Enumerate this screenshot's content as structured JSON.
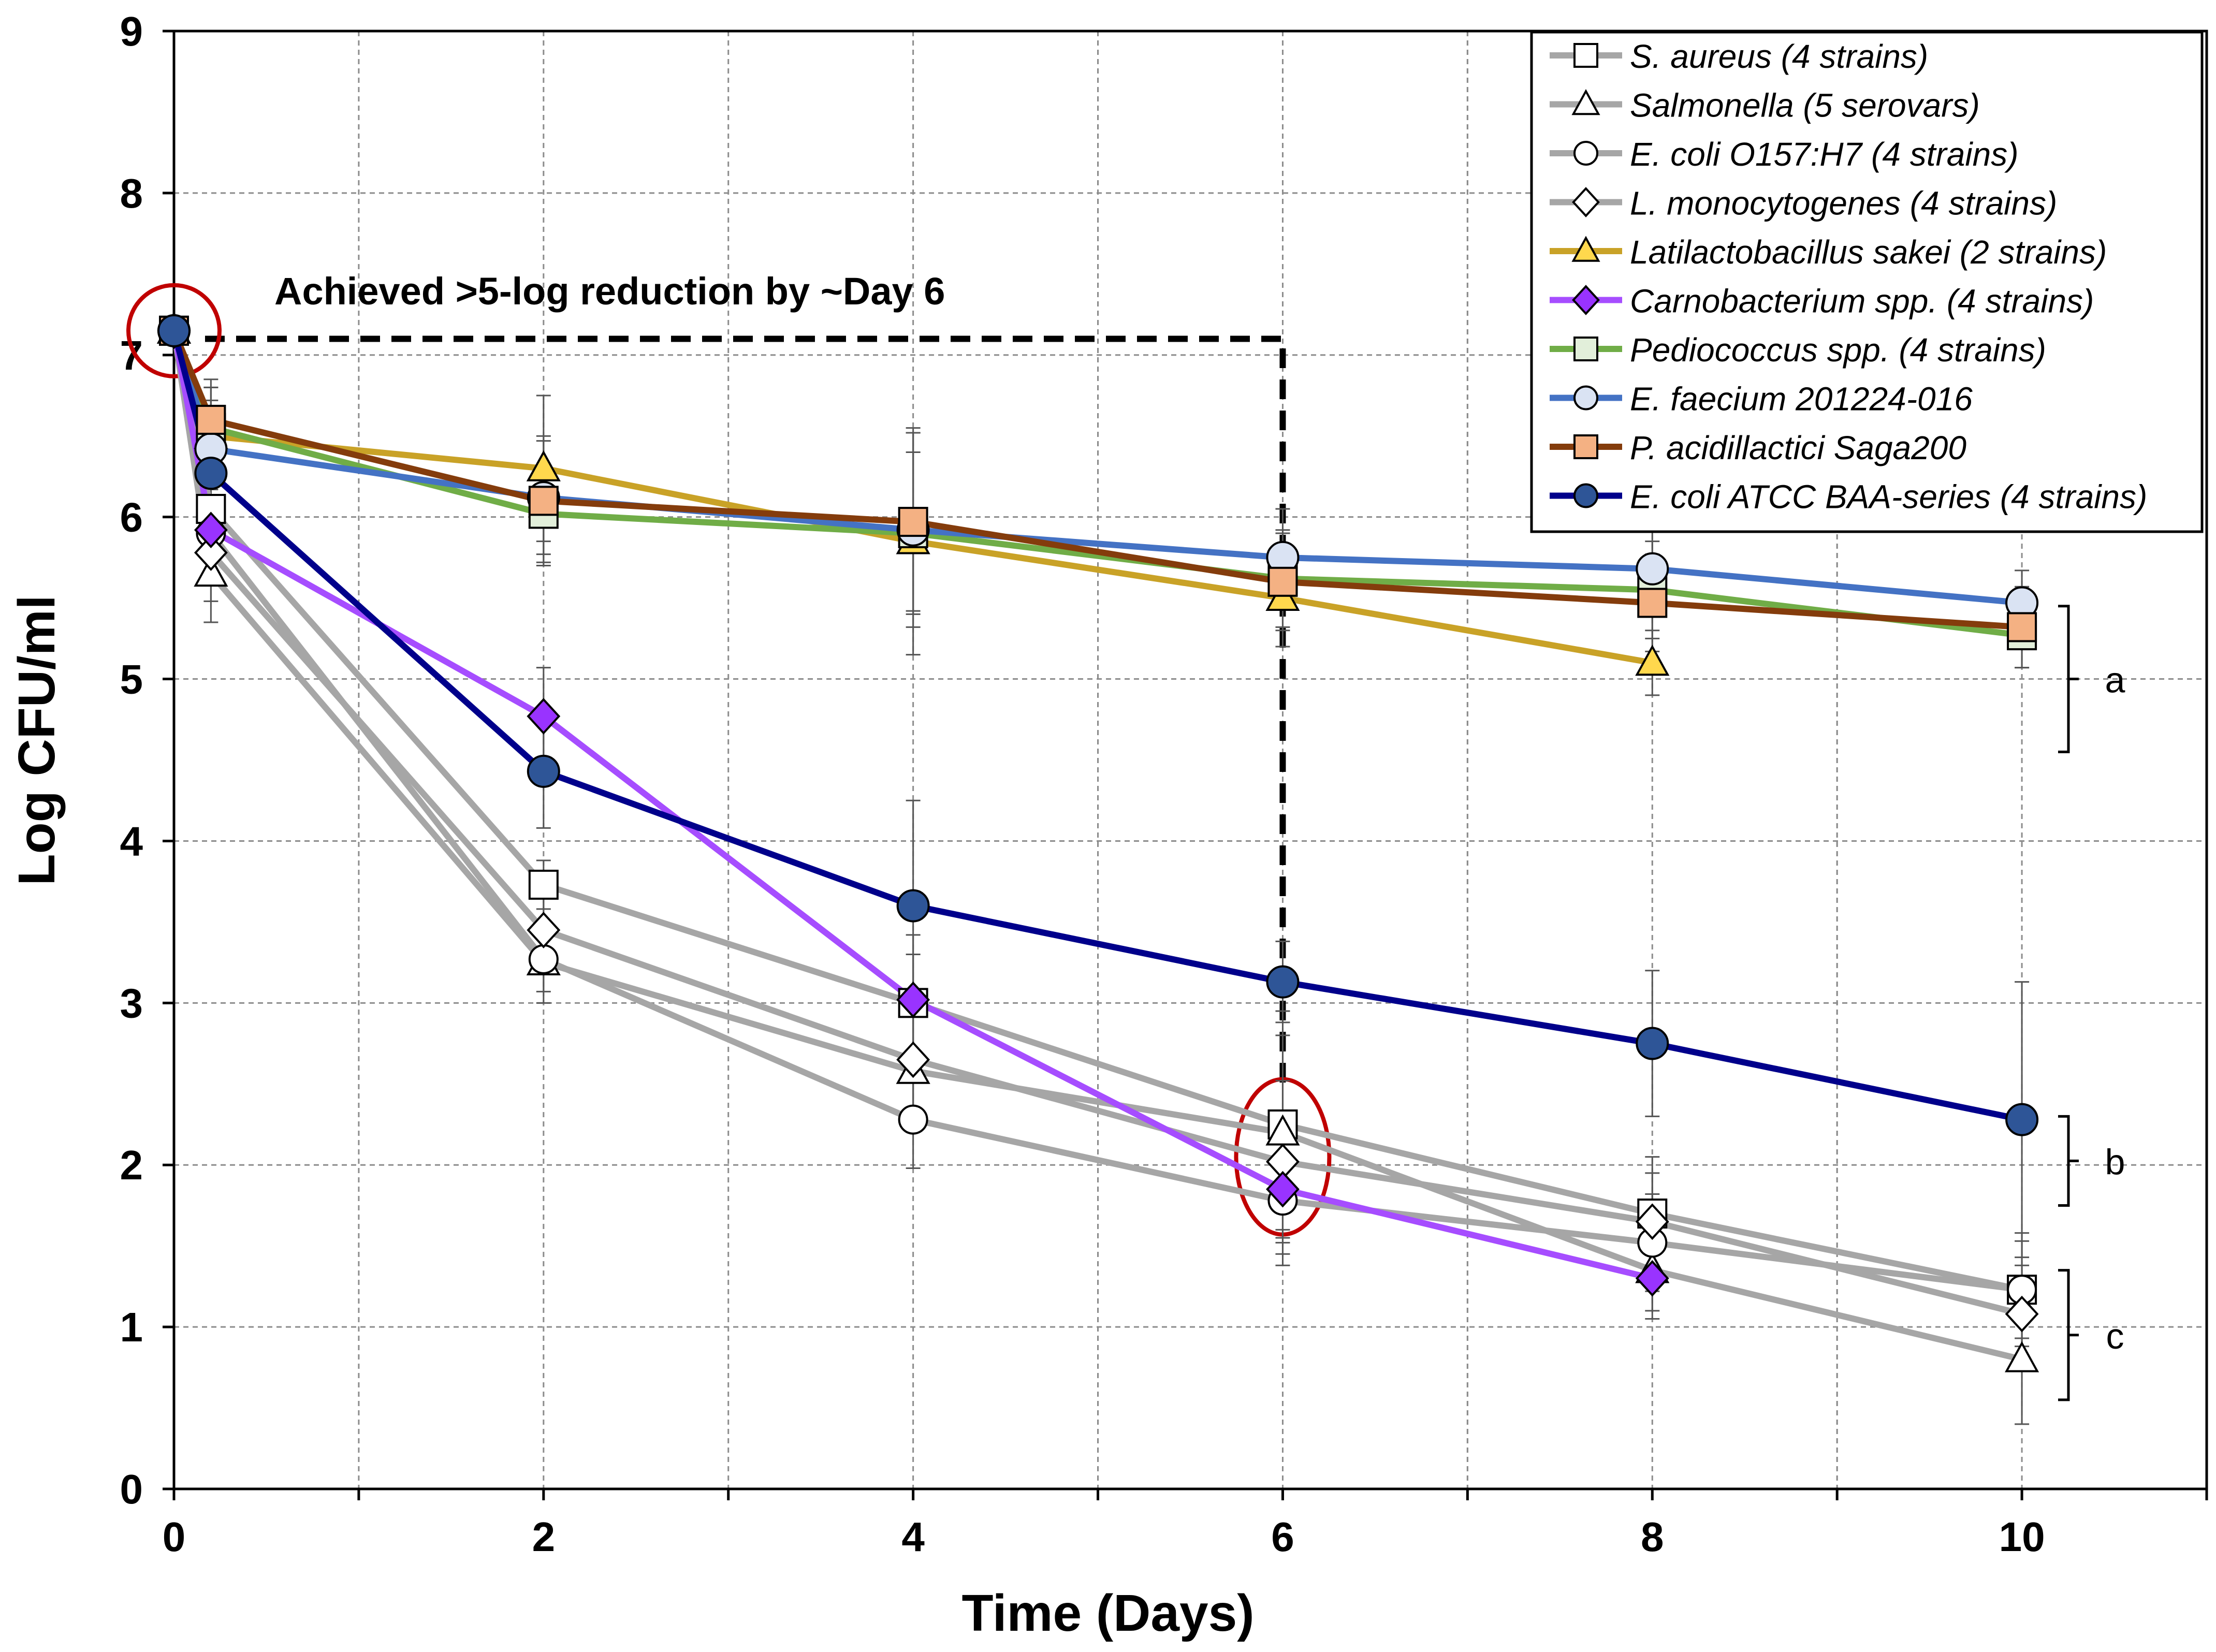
{
  "chart_data": {
    "type": "line",
    "title": "",
    "xlabel": "Time (Days)",
    "ylabel": "Log CFU/ml",
    "xlim": [
      0,
      11
    ],
    "ylim": [
      0,
      9
    ],
    "xticks": [
      0,
      2,
      4,
      6,
      8,
      10
    ],
    "yticks": [
      0,
      1,
      2,
      3,
      4,
      5,
      6,
      7,
      8,
      9
    ],
    "xtick_labels": [
      "0",
      "2",
      "4",
      "6",
      "8",
      "10"
    ],
    "ytick_labels": [
      "0",
      "1",
      "2",
      "3",
      "4",
      "5",
      "6",
      "7",
      "8",
      "9"
    ],
    "grid": true,
    "legend_position": "top-right",
    "series": [
      {
        "name": "S. aureus (4 strains)",
        "color": "#a6a6a6",
        "marker": "square",
        "marker_fill": "#ffffff",
        "marker_edge": "#000000",
        "x": [
          0,
          0.2,
          2,
          4,
          6,
          8,
          10
        ],
        "y": [
          7.15,
          6.05,
          3.73,
          3.0,
          2.25,
          1.7,
          1.23
        ],
        "err": [
          0.05,
          0.3,
          0.15,
          0.3,
          0.7,
          0.35,
          0.35
        ]
      },
      {
        "name": "Salmonella (5 serovars)",
        "color": "#a6a6a6",
        "marker": "triangle",
        "marker_fill": "#ffffff",
        "marker_edge": "#000000",
        "x": [
          0,
          0.2,
          2,
          4,
          6,
          8,
          10
        ],
        "y": [
          7.15,
          5.65,
          3.25,
          2.58,
          2.2,
          1.35,
          0.8
        ],
        "err": [
          0.05,
          0.3,
          0.25,
          0.35,
          0.6,
          0.3,
          0.4
        ]
      },
      {
        "name": "E. coli O157:H7 (4 strains)",
        "color": "#a6a6a6",
        "marker": "circle",
        "marker_fill": "#ffffff",
        "marker_edge": "#000000",
        "x": [
          0,
          0.2,
          2,
          4,
          6,
          8,
          10
        ],
        "y": [
          7.15,
          5.9,
          3.27,
          2.28,
          1.78,
          1.52,
          1.23
        ],
        "err": [
          0.05,
          0.3,
          0.2,
          0.3,
          0.4,
          0.3,
          0.3
        ]
      },
      {
        "name": "L. monocytogenes (4 strains)",
        "color": "#a6a6a6",
        "marker": "diamond",
        "marker_fill": "#ffffff",
        "marker_edge": "#000000",
        "x": [
          0,
          0.2,
          2,
          4,
          6,
          8,
          10
        ],
        "y": [
          7.15,
          5.78,
          3.45,
          2.65,
          2.02,
          1.65,
          1.08
        ],
        "err": [
          0.05,
          0.3,
          0.2,
          0.3,
          0.5,
          0.3,
          0.3
        ]
      },
      {
        "name": "Latilactobacillus sakei (2 strains)",
        "color": "#c9a227",
        "marker": "triangle",
        "marker_fill": "#ffd84d",
        "marker_edge": "#000000",
        "x": [
          0,
          0.2,
          2,
          4,
          6,
          8
        ],
        "y": [
          7.15,
          6.5,
          6.3,
          5.85,
          5.5,
          5.1
        ],
        "err": [
          0.05,
          0.3,
          0.45,
          0.7,
          0.3,
          0.2
        ]
      },
      {
        "name": "Carnobacterium spp. (4 strains)",
        "color": "#a64dff",
        "marker": "diamond",
        "marker_fill": "#9933ff",
        "marker_edge": "#000000",
        "x": [
          0,
          0.2,
          2,
          4,
          6,
          8
        ],
        "y": [
          7.15,
          5.92,
          4.77,
          3.02,
          1.85,
          1.3
        ],
        "err": [
          0.05,
          0.25,
          0.3,
          0.4,
          0.4,
          0.2
        ]
      },
      {
        "name": "Pediococcus spp. (4 strains)",
        "color": "#70ad47",
        "marker": "square",
        "marker_fill": "#e2efda",
        "marker_edge": "#000000",
        "x": [
          0,
          0.2,
          2,
          4,
          6,
          8,
          10
        ],
        "y": [
          7.15,
          6.55,
          6.02,
          5.9,
          5.62,
          5.55,
          5.27
        ],
        "err": [
          0.05,
          0.25,
          0.3,
          0.5,
          0.3,
          0.3,
          0.2
        ]
      },
      {
        "name": "E. faecium 201224-016",
        "color": "#4472c4",
        "marker": "circle",
        "marker_fill": "#dae3f3",
        "marker_edge": "#000000",
        "x": [
          0,
          0.2,
          2,
          4,
          6,
          8,
          10
        ],
        "y": [
          7.15,
          6.42,
          6.12,
          5.92,
          5.75,
          5.68,
          5.47
        ],
        "err": [
          0.05,
          0.3,
          0.35,
          0.6,
          0.3,
          0.25,
          0.2
        ]
      },
      {
        "name": "P. acidillactici Saga200",
        "color": "#843c0c",
        "marker": "square",
        "marker_fill": "#f4b183",
        "marker_edge": "#000000",
        "x": [
          0,
          0.2,
          2,
          4,
          6,
          8,
          10
        ],
        "y": [
          7.15,
          6.6,
          6.1,
          5.97,
          5.6,
          5.47,
          5.32
        ],
        "err": [
          0.05,
          0.25,
          0.4,
          0.55,
          0.3,
          0.3,
          0.25
        ]
      },
      {
        "name": "E. coli ATCC BAA-series (4 strains)",
        "color": "#00008b",
        "marker": "circle",
        "marker_fill": "#2e5597",
        "marker_edge": "#000000",
        "x": [
          0,
          0.2,
          2,
          4,
          6,
          8,
          10
        ],
        "y": [
          7.15,
          6.27,
          4.43,
          3.6,
          3.13,
          2.75,
          2.28
        ],
        "err": [
          0.05,
          0.3,
          0.35,
          0.65,
          0.25,
          0.45,
          0.85
        ]
      }
    ],
    "annotations": {
      "reduction_text": "Achieved >5-log reduction by ~Day 6",
      "reduction_path": {
        "start": [
          0,
          7.1
        ],
        "corner": [
          6,
          7.1
        ],
        "end": [
          6,
          2.5
        ]
      },
      "highlight_circles": [
        {
          "x": 0,
          "y": 7.15,
          "color": "#c00000"
        },
        {
          "x": 6,
          "y": 2.05,
          "color": "#c00000"
        }
      ],
      "groups": [
        {
          "label": "a",
          "y_top": 5.45,
          "y_bottom": 4.55
        },
        {
          "label": "b",
          "y_top": 2.3,
          "y_bottom": 1.75
        },
        {
          "label": "c",
          "y_top": 1.35,
          "y_bottom": 0.55
        }
      ]
    }
  }
}
